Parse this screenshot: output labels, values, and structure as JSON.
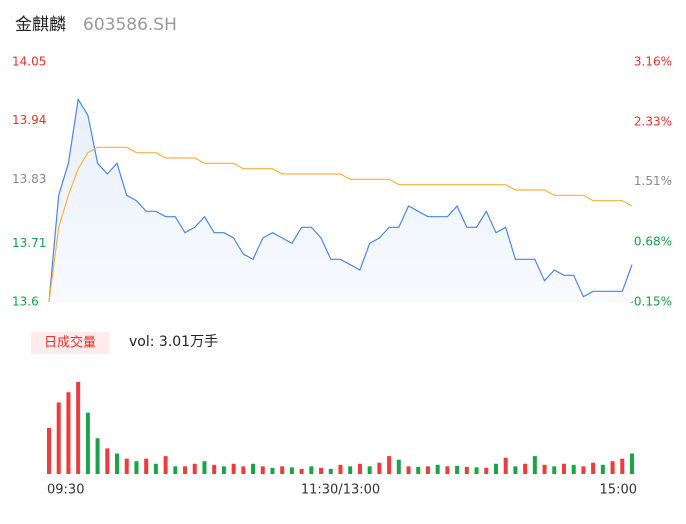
{
  "header": {
    "name": "金麒麟",
    "code": "603586.SH"
  },
  "volume_panel": {
    "badge": "日成交量",
    "total": "vol: 3.01万手"
  },
  "chart_data": {
    "type": "line",
    "xlim": [
      0,
      240
    ],
    "xticks": [
      {
        "value": 0,
        "label": "09:30"
      },
      {
        "value": 120,
        "label": "11:30/13:00"
      },
      {
        "value": 240,
        "label": "15:00"
      }
    ],
    "ylim": [
      13.6,
      14.05
    ],
    "yticks": [
      13.6,
      13.71,
      13.83,
      13.94,
      14.05
    ],
    "ytick_colors": [
      "#1a9e48",
      "#1a9e48",
      "#888888",
      "#e8312f",
      "#e8312f"
    ],
    "y2lim": [
      -0.15,
      3.16
    ],
    "y2ticks": [
      {
        "value": -0.15,
        "label": "-0.15%"
      },
      {
        "value": 0.68,
        "label": "0.68%"
      },
      {
        "value": 1.51,
        "label": "1.51%"
      },
      {
        "value": 2.33,
        "label": "2.33%"
      },
      {
        "value": 3.16,
        "label": "3.16%"
      }
    ],
    "y2tick_colors": [
      "#1a9e48",
      "#1a9e48",
      "#888888",
      "#e8312f",
      "#e8312f"
    ],
    "series": [
      {
        "color": "#4a86e0",
        "values": [
          13.6,
          13.8,
          13.86,
          13.98,
          13.95,
          13.86,
          13.84,
          13.86,
          13.8,
          13.79,
          13.77,
          13.77,
          13.76,
          13.76,
          13.73,
          13.74,
          13.76,
          13.73,
          13.73,
          13.72,
          13.69,
          13.68,
          13.72,
          13.73,
          13.72,
          13.71,
          13.74,
          13.74,
          13.72,
          13.68,
          13.68,
          13.67,
          13.66,
          13.71,
          13.72,
          13.74,
          13.74,
          13.78,
          13.77,
          13.76,
          13.76,
          13.76,
          13.78,
          13.74,
          13.74,
          13.77,
          13.73,
          13.74,
          13.68,
          13.68,
          13.68,
          13.64,
          13.66,
          13.65,
          13.65,
          13.61,
          13.62,
          13.62,
          13.62,
          13.62,
          13.67
        ]
      },
      {
        "color": "#f5b43c",
        "values": [
          13.6,
          13.74,
          13.8,
          13.85,
          13.88,
          13.89,
          13.89,
          13.89,
          13.89,
          13.88,
          13.88,
          13.88,
          13.87,
          13.87,
          13.87,
          13.87,
          13.86,
          13.86,
          13.86,
          13.86,
          13.85,
          13.85,
          13.85,
          13.85,
          13.84,
          13.84,
          13.84,
          13.84,
          13.84,
          13.84,
          13.84,
          13.83,
          13.83,
          13.83,
          13.83,
          13.83,
          13.82,
          13.82,
          13.82,
          13.82,
          13.82,
          13.82,
          13.82,
          13.82,
          13.82,
          13.82,
          13.82,
          13.82,
          13.81,
          13.81,
          13.81,
          13.81,
          13.8,
          13.8,
          13.8,
          13.8,
          13.79,
          13.79,
          13.79,
          13.79,
          13.78
        ]
      }
    ],
    "volume": {
      "up_color": "#ee3b3b",
      "down_color": "#1aa34a",
      "values": [
        900,
        1400,
        1600,
        1800,
        1200,
        700,
        500,
        400,
        300,
        250,
        300,
        200,
        350,
        150,
        150,
        200,
        250,
        180,
        150,
        200,
        150,
        200,
        150,
        120,
        150,
        130,
        100,
        150,
        120,
        100,
        180,
        150,
        200,
        150,
        220,
        350,
        280,
        150,
        140,
        150,
        180,
        150,
        160,
        140,
        130,
        120,
        200,
        320,
        150,
        200,
        350,
        180,
        150,
        200,
        180,
        150,
        220,
        180,
        250,
        300,
        400
      ],
      "up": [
        true,
        true,
        true,
        true,
        false,
        false,
        true,
        false,
        true,
        false,
        true,
        false,
        true,
        false,
        true,
        true,
        false,
        true,
        false,
        true,
        true,
        false,
        true,
        false,
        true,
        false,
        true,
        false,
        true,
        false,
        true,
        false,
        true,
        false,
        true,
        true,
        false,
        true,
        false,
        true,
        false,
        true,
        false,
        true,
        false,
        true,
        false,
        true,
        false,
        true,
        false,
        true,
        false,
        true,
        false,
        true,
        true,
        false,
        true,
        true,
        false
      ]
    }
  }
}
